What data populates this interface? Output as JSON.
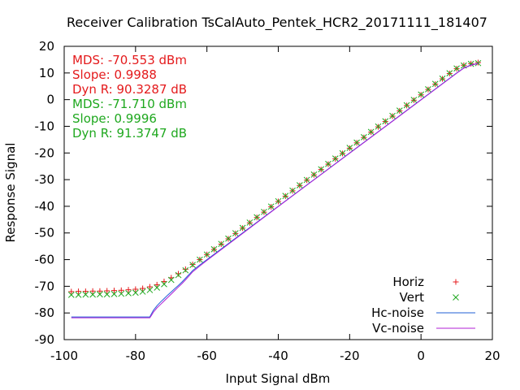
{
  "chart_data": {
    "type": "scatter",
    "title": "Receiver Calibration TsCalAuto_Pentek_HCR2_20171111_181407",
    "xlabel": "Input Signal dBm",
    "ylabel": "Response Signal",
    "xlim": [
      -100,
      20
    ],
    "ylim": [
      -90,
      20
    ],
    "x_ticks": [
      -100,
      -80,
      -60,
      -40,
      -20,
      0,
      20
    ],
    "y_ticks": [
      -90,
      -80,
      -70,
      -60,
      -50,
      -40,
      -30,
      -20,
      -10,
      0,
      10,
      20
    ],
    "grid": false,
    "legend": "bottom-right",
    "annotations": [
      {
        "text": "MDS: -70.553 dBm",
        "color": "#e41a1c"
      },
      {
        "text": "Slope: 0.9988",
        "color": "#e41a1c"
      },
      {
        "text": "Dyn R: 90.3287 dB",
        "color": "#e41a1c"
      },
      {
        "text": "MDS: -71.710 dBm",
        "color": "#1fa81f"
      },
      {
        "text": "Slope: 0.9996",
        "color": "#1fa81f"
      },
      {
        "text": "Dyn R: 91.3747 dB",
        "color": "#1fa81f"
      }
    ],
    "series": [
      {
        "name": "Horiz",
        "kind": "points",
        "marker": "plus",
        "color": "#e41a1c",
        "x": [
          -98,
          -96,
          -94,
          -92,
          -90,
          -88,
          -86,
          -84,
          -82,
          -80,
          -78,
          -76,
          -74,
          -72,
          -70,
          -68,
          -66,
          -64,
          -62,
          -60,
          -58,
          -56,
          -54,
          -52,
          -50,
          -48,
          -46,
          -44,
          -42,
          -40,
          -38,
          -36,
          -34,
          -32,
          -30,
          -28,
          -26,
          -24,
          -22,
          -20,
          -18,
          -16,
          -14,
          -12,
          -10,
          -8,
          -6,
          -4,
          -2,
          0,
          2,
          4,
          6,
          8,
          10,
          12,
          14,
          16
        ],
        "y": [
          -72.0,
          -71.9,
          -71.9,
          -71.8,
          -71.8,
          -71.7,
          -71.6,
          -71.5,
          -71.3,
          -71.1,
          -70.8,
          -70.2,
          -69.4,
          -68.2,
          -66.8,
          -65.3,
          -63.6,
          -61.8,
          -60.0,
          -58.1,
          -56.2,
          -54.2,
          -52.2,
          -50.2,
          -48.2,
          -46.2,
          -44.2,
          -42.2,
          -40.2,
          -38.2,
          -36.2,
          -34.2,
          -32.2,
          -30.2,
          -28.2,
          -26.2,
          -24.2,
          -22.2,
          -20.2,
          -18.2,
          -16.2,
          -14.2,
          -12.2,
          -10.2,
          -8.2,
          -6.2,
          -4.2,
          -2.2,
          -0.2,
          1.8,
          3.8,
          5.8,
          7.8,
          9.8,
          11.6,
          12.9,
          13.5,
          13.9
        ]
      },
      {
        "name": "Vert",
        "kind": "points",
        "marker": "cross",
        "color": "#1fa81f",
        "x": [
          -98,
          -96,
          -94,
          -92,
          -90,
          -88,
          -86,
          -84,
          -82,
          -80,
          -78,
          -76,
          -74,
          -72,
          -70,
          -68,
          -66,
          -64,
          -62,
          -60,
          -58,
          -56,
          -54,
          -52,
          -50,
          -48,
          -46,
          -44,
          -42,
          -40,
          -38,
          -36,
          -34,
          -32,
          -30,
          -28,
          -26,
          -24,
          -22,
          -20,
          -18,
          -16,
          -14,
          -12,
          -10,
          -8,
          -6,
          -4,
          -2,
          0,
          2,
          4,
          6,
          8,
          10,
          12,
          14,
          16
        ],
        "y": [
          -73.2,
          -73.2,
          -73.1,
          -73.1,
          -73.0,
          -73.0,
          -72.9,
          -72.8,
          -72.6,
          -72.4,
          -72.0,
          -71.4,
          -70.5,
          -69.2,
          -67.6,
          -65.8,
          -64.0,
          -62.0,
          -60.0,
          -58.1,
          -56.1,
          -54.1,
          -52.1,
          -50.1,
          -48.1,
          -46.1,
          -44.1,
          -42.1,
          -40.1,
          -38.1,
          -36.1,
          -34.1,
          -32.1,
          -30.1,
          -28.1,
          -26.1,
          -24.1,
          -22.1,
          -20.1,
          -18.1,
          -16.1,
          -14.1,
          -12.1,
          -10.1,
          -8.1,
          -6.1,
          -4.1,
          -2.1,
          -0.1,
          1.9,
          3.9,
          5.9,
          7.9,
          9.9,
          11.7,
          12.8,
          13.4,
          13.7
        ]
      },
      {
        "name": "Hc-noise",
        "kind": "line",
        "color": "#1f5fd6",
        "x": [
          -98,
          -76,
          -75.5,
          -75,
          -74,
          -73,
          -72,
          -71,
          -70,
          -69,
          -68,
          -67,
          -66,
          -65,
          -64,
          -62,
          -60,
          -50,
          -40,
          -30,
          -20,
          -10,
          0,
          10,
          12,
          14,
          16
        ],
        "y": [
          -81.5,
          -81.5,
          -80.2,
          -79.0,
          -77.3,
          -75.9,
          -74.6,
          -73.3,
          -72.1,
          -70.9,
          -69.7,
          -68.4,
          -67.0,
          -65.6,
          -64.1,
          -62.0,
          -60.0,
          -50.0,
          -40.0,
          -30.0,
          -20.0,
          -10.0,
          0.0,
          10.0,
          11.9,
          13.0,
          13.6
        ]
      },
      {
        "name": "Vc-noise",
        "kind": "line",
        "color": "#b01fd6",
        "x": [
          -98,
          -76,
          -75.5,
          -75,
          -74,
          -73,
          -72,
          -71,
          -70,
          -69,
          -68,
          -67,
          -66,
          -65,
          -64,
          -62,
          -60,
          -50,
          -40,
          -30,
          -20,
          -10,
          0,
          10,
          12,
          14,
          16
        ],
        "y": [
          -81.8,
          -81.8,
          -80.8,
          -79.7,
          -78.1,
          -76.8,
          -75.5,
          -74.2,
          -72.9,
          -71.6,
          -70.3,
          -69.0,
          -67.6,
          -66.1,
          -64.6,
          -62.4,
          -60.3,
          -50.2,
          -40.1,
          -30.1,
          -20.1,
          -10.1,
          -0.1,
          9.9,
          11.8,
          12.9,
          13.5
        ]
      }
    ]
  }
}
